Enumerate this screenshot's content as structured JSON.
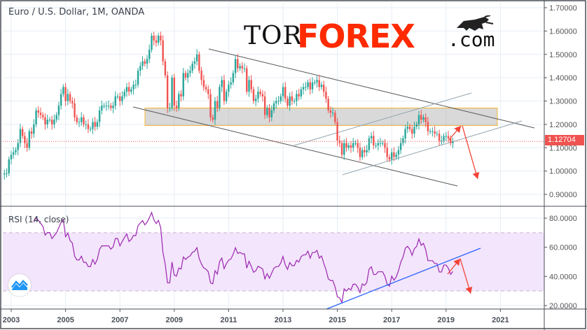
{
  "header": {
    "title": "Euro / U.S. Dollar, 1M, OANDA"
  },
  "logo": {
    "text_tor": "TOR",
    "text_forex": "FOREX",
    "text_com": ".com",
    "bull_icon": "bull-icon"
  },
  "indicator": {
    "label": "RSI (14, close)"
  },
  "price_axis": {
    "ticks": [
      "1.70000",
      "1.60000",
      "1.50000",
      "1.40000",
      "1.30000",
      "1.20000",
      "1.10000",
      "1.00000",
      "0.90000"
    ],
    "last_price": "1.12704"
  },
  "rsi_axis": {
    "ticks": [
      "80.0000",
      "60.0000",
      "40.0000",
      "20.0000"
    ]
  },
  "time_axis": {
    "ticks": [
      "2003",
      "2005",
      "2007",
      "2009",
      "2011",
      "2013",
      "2015",
      "2017",
      "2019",
      "2021"
    ]
  },
  "colors": {
    "up": "#26a69a",
    "down": "#ef5350",
    "rsi_line": "#9c27b0",
    "rsi_band": "#f3e5fc",
    "zone_border": "#f5b335",
    "trendline": "#2962ff",
    "arrow": "#f44336"
  },
  "chart_data": {
    "type": "candlestick",
    "title": "Euro / U.S. Dollar, 1M, OANDA",
    "interval": "monthly",
    "start": "2002-09",
    "ylim": [
      0.86,
      1.72
    ],
    "rsi_ylim": [
      17,
      88
    ],
    "rsi_bands": [
      30,
      70
    ],
    "last_price": 1.12704,
    "closes": [
      0.985,
      0.99,
      0.99,
      1.05,
      1.07,
      1.08,
      1.09,
      1.12,
      1.18,
      1.15,
      1.12,
      1.1,
      1.17,
      1.16,
      1.2,
      1.26,
      1.25,
      1.24,
      1.23,
      1.2,
      1.22,
      1.22,
      1.2,
      1.22,
      1.24,
      1.28,
      1.33,
      1.36,
      1.3,
      1.33,
      1.3,
      1.29,
      1.23,
      1.21,
      1.21,
      1.23,
      1.2,
      1.2,
      1.18,
      1.18,
      1.21,
      1.19,
      1.21,
      1.26,
      1.28,
      1.28,
      1.28,
      1.28,
      1.27,
      1.28,
      1.32,
      1.32,
      1.3,
      1.32,
      1.34,
      1.36,
      1.34,
      1.35,
      1.37,
      1.37,
      1.43,
      1.45,
      1.47,
      1.46,
      1.48,
      1.52,
      1.58,
      1.56,
      1.55,
      1.58,
      1.56,
      1.47,
      1.41,
      1.27,
      1.27,
      1.4,
      1.28,
      1.27,
      1.33,
      1.32,
      1.42,
      1.4,
      1.42,
      1.43,
      1.46,
      1.47,
      1.5,
      1.43,
      1.39,
      1.36,
      1.35,
      1.33,
      1.23,
      1.22,
      1.3,
      1.27,
      1.36,
      1.39,
      1.3,
      1.34,
      1.37,
      1.38,
      1.42,
      1.48,
      1.44,
      1.45,
      1.44,
      1.44,
      1.34,
      1.39,
      1.35,
      1.3,
      1.31,
      1.34,
      1.33,
      1.32,
      1.24,
      1.27,
      1.23,
      1.26,
      1.29,
      1.3,
      1.3,
      1.32,
      1.36,
      1.31,
      1.28,
      1.32,
      1.3,
      1.3,
      1.33,
      1.32,
      1.35,
      1.36,
      1.36,
      1.38,
      1.35,
      1.38,
      1.38,
      1.39,
      1.36,
      1.37,
      1.34,
      1.31,
      1.26,
      1.25,
      1.25,
      1.21,
      1.13,
      1.12,
      1.07,
      1.12,
      1.1,
      1.11,
      1.1,
      1.12,
      1.12,
      1.1,
      1.06,
      1.09,
      1.08,
      1.09,
      1.14,
      1.15,
      1.11,
      1.11,
      1.12,
      1.12,
      1.12,
      1.1,
      1.06,
      1.05,
      1.08,
      1.06,
      1.07,
      1.09,
      1.12,
      1.14,
      1.18,
      1.19,
      1.18,
      1.16,
      1.19,
      1.2,
      1.24,
      1.22,
      1.23,
      1.21,
      1.17,
      1.17,
      1.17,
      1.16,
      1.16,
      1.13,
      1.13,
      1.15,
      1.15,
      1.14,
      1.12,
      1.127
    ],
    "resistance_zone": [
      1.195,
      1.27
    ]
  }
}
